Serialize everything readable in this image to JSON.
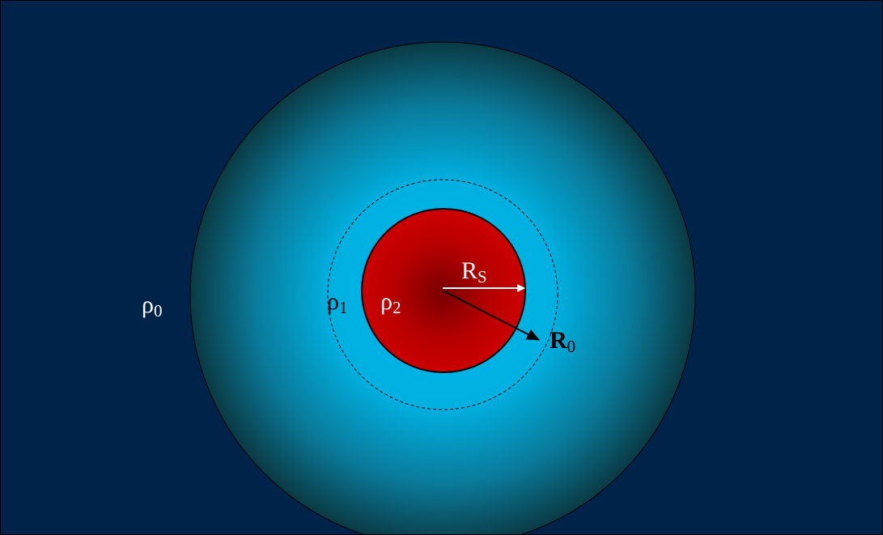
{
  "labels": [
    {
      "base": "ρ",
      "sub": "0"
    },
    {
      "base": "ρ",
      "sub": "1"
    },
    {
      "base": "ρ",
      "sub": "2"
    },
    {
      "base": "R",
      "sub": "S"
    },
    {
      "base": "R",
      "sub": "0"
    }
  ]
}
